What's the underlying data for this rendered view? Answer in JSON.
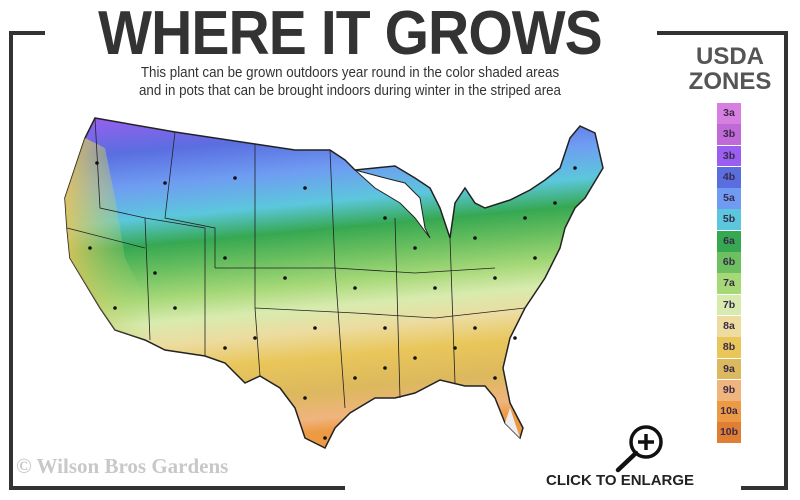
{
  "header": {
    "title": "WHERE IT GROWS",
    "subtitle_line1": "This plant can be grown outdoors year round in the color shaded areas",
    "subtitle_line2": "and in pots that can be brought indoors during winter in the striped area"
  },
  "legend": {
    "title_line1": "USDA",
    "title_line2": "ZONES",
    "zones": [
      {
        "label": "3a",
        "color": "#d77fe0"
      },
      {
        "label": "3b",
        "color": "#c06ad8"
      },
      {
        "label": "3b",
        "color": "#9a5ef0"
      },
      {
        "label": "4b",
        "color": "#5a6ee0"
      },
      {
        "label": "5a",
        "color": "#6f9cf2"
      },
      {
        "label": "5b",
        "color": "#5cc7dc"
      },
      {
        "label": "6a",
        "color": "#36a852"
      },
      {
        "label": "6b",
        "color": "#6cc060"
      },
      {
        "label": "7a",
        "color": "#a6d878"
      },
      {
        "label": "7b",
        "color": "#d8ebae"
      },
      {
        "label": "8a",
        "color": "#ecdca0"
      },
      {
        "label": "8b",
        "color": "#e9c65a"
      },
      {
        "label": "9a",
        "color": "#dcb85e"
      },
      {
        "label": "9b",
        "color": "#f0b47e"
      },
      {
        "label": "10a",
        "color": "#ec9a44"
      },
      {
        "label": "10b",
        "color": "#e07e34"
      }
    ]
  },
  "footer": {
    "copyright": "© Wilson Bros Gardens",
    "enlarge_label": "CLICK TO ENLARGE",
    "enlarge_icon": "zoom-in-magnifier-icon"
  }
}
